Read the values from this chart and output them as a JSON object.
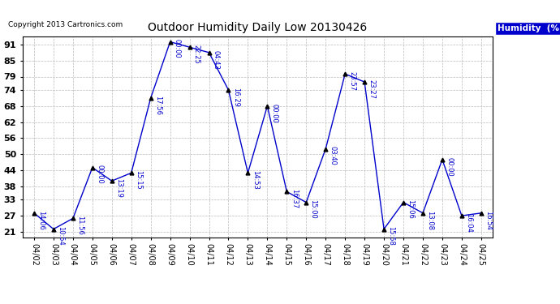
{
  "title": "Outdoor Humidity Daily Low 20130426",
  "copyright": "Copyright 2013 Cartronics.com",
  "legend_label": "Humidity  (%)",
  "yticks": [
    21,
    27,
    33,
    38,
    44,
    50,
    56,
    62,
    68,
    74,
    79,
    85,
    91
  ],
  "ylim": [
    19,
    94
  ],
  "dates": [
    "04/02",
    "04/03",
    "04/04",
    "04/05",
    "04/06",
    "04/07",
    "04/08",
    "04/09",
    "04/10",
    "04/11",
    "04/12",
    "04/13",
    "04/14",
    "04/15",
    "04/16",
    "04/17",
    "04/18",
    "04/19",
    "04/20",
    "04/21",
    "04/22",
    "04/23",
    "04/24",
    "04/25"
  ],
  "values": [
    28,
    22,
    26,
    45,
    40,
    43,
    71,
    92,
    90,
    88,
    74,
    43,
    68,
    36,
    32,
    52,
    80,
    77,
    22,
    32,
    28,
    48,
    27,
    28
  ],
  "times": [
    "14:06",
    "10:54",
    "11:56",
    "00:00",
    "13:19",
    "15:15",
    "17:56",
    "00:00",
    "22:25",
    "04:43",
    "16:29",
    "14:53",
    "00:00",
    "16:37",
    "15:00",
    "03:40",
    "23:57",
    "23:27",
    "15:58",
    "15:06",
    "13:08",
    "00:00",
    "16:04",
    "16:54"
  ],
  "line_color": "#0000cc",
  "marker_color": "#000000",
  "bg_color": "#ffffff",
  "grid_color": "#bbbbbb",
  "label_color": "#0000cc",
  "title_color": "#000000"
}
